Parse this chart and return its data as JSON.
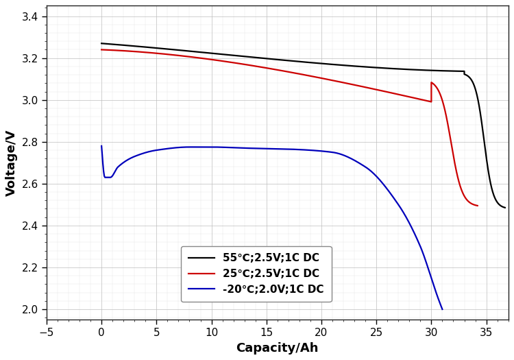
{
  "xlabel": "Capacity/Ah",
  "ylabel": "Voltage/V",
  "xlim": [
    -5,
    37
  ],
  "ylim": [
    1.95,
    3.45
  ],
  "xticks": [
    -5,
    0,
    5,
    10,
    15,
    20,
    25,
    30,
    35
  ],
  "yticks": [
    2.0,
    2.2,
    2.4,
    2.6,
    2.8,
    3.0,
    3.2,
    3.4
  ],
  "legend": [
    {
      "label": "55℃;2.5V;1C DC",
      "color": "#000000"
    },
    {
      "label": "25℃;2.5V;1C DC",
      "color": "#cc0000"
    },
    {
      "label": "-20℃;2.0V;1C DC",
      "color": "#0000bb"
    }
  ],
  "background_color": "#ffffff",
  "grid_color": "#bbbbbb",
  "linewidth": 1.6
}
